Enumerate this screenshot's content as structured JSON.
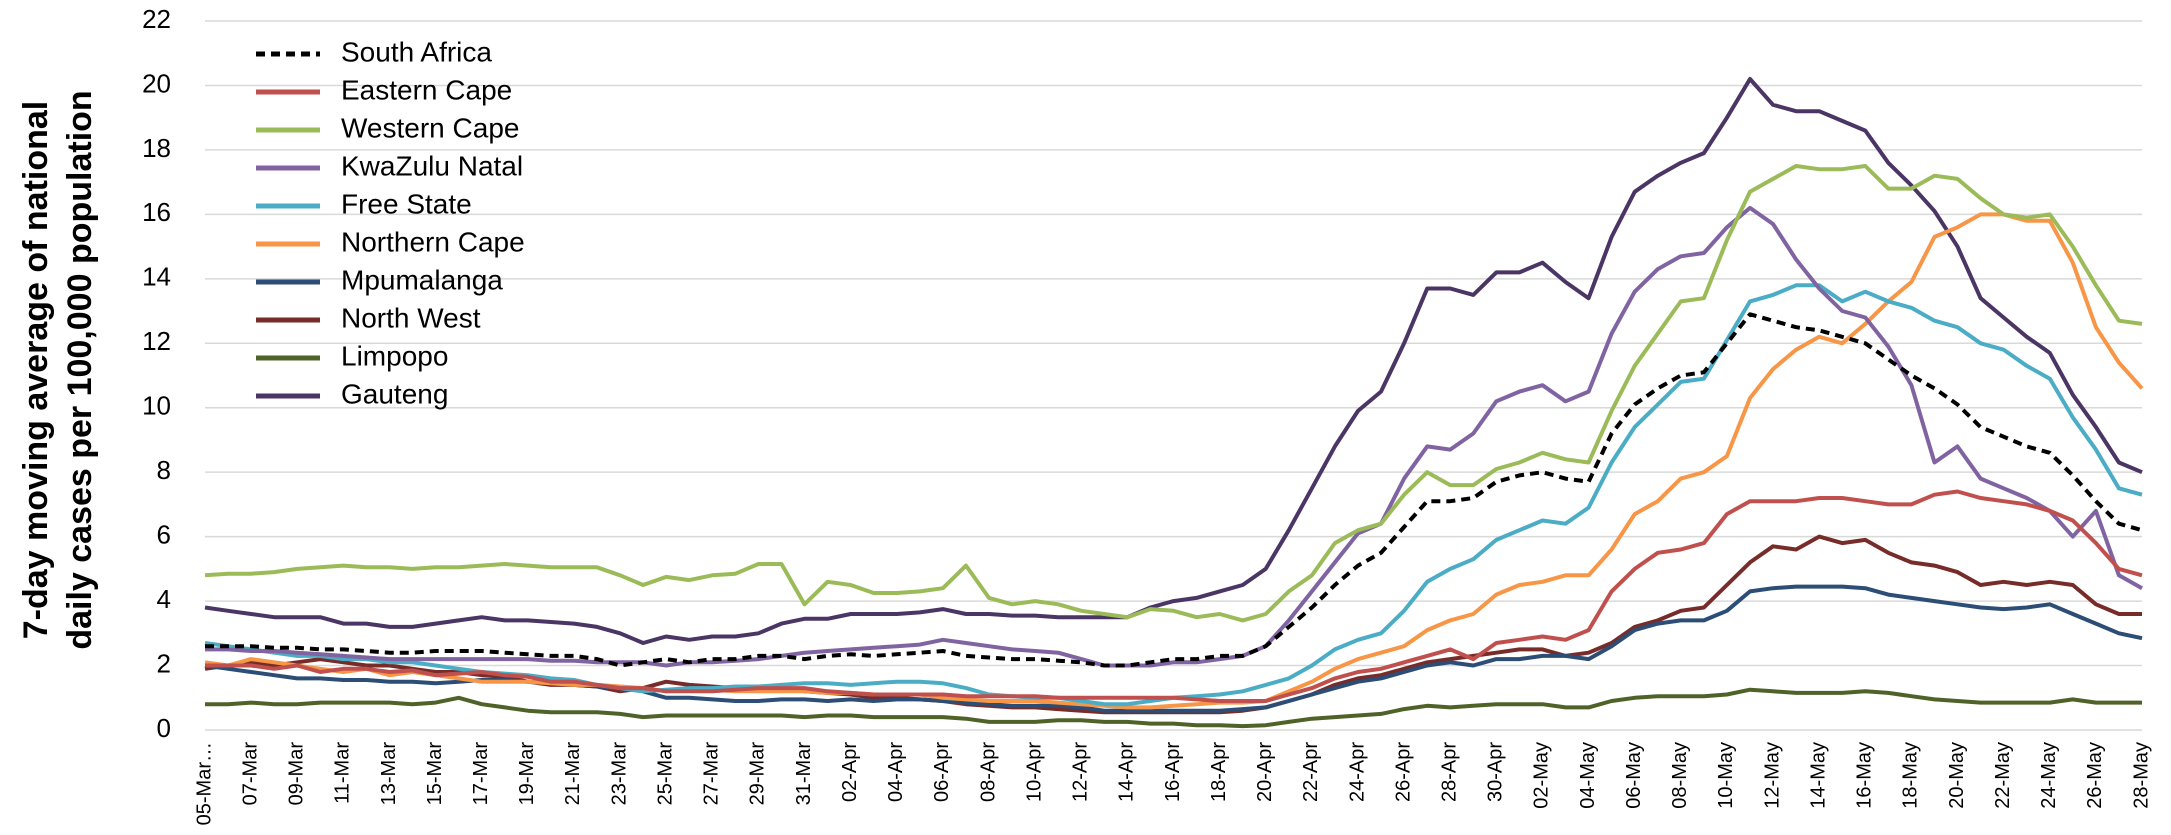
{
  "chart_data": {
    "type": "line",
    "ylabel": [
      "7-day moving  average of national",
      "daily cases per 100,000 population"
    ],
    "categories": [
      "05-Mar…",
      null,
      "07-Mar",
      null,
      "09-Mar",
      null,
      "11-Mar",
      null,
      "13-Mar",
      null,
      "15-Mar",
      null,
      "17-Mar",
      null,
      "19-Mar",
      null,
      "21-Mar",
      null,
      "23-Mar",
      null,
      "25-Mar",
      null,
      "27-Mar",
      null,
      "29-Mar",
      null,
      "31-Mar",
      null,
      "02-Apr",
      null,
      "04-Apr",
      null,
      "06-Apr",
      null,
      "08-Apr",
      null,
      "10-Apr",
      null,
      "12-Apr",
      null,
      "14-Apr",
      null,
      "16-Apr",
      null,
      "18-Apr",
      null,
      "20-Apr",
      null,
      "22-Apr",
      null,
      "24-Apr",
      null,
      "26-Apr",
      null,
      "28-Apr",
      null,
      "30-Apr",
      null,
      "02-May",
      null,
      "04-May",
      null,
      "06-May",
      null,
      "08-May",
      null,
      "10-May",
      null,
      "12-May",
      null,
      "14-May",
      null,
      "16-May",
      null,
      "18-May",
      null,
      "20-May",
      null,
      "22-May",
      null,
      "24-May",
      null,
      "26-May",
      null,
      "28-May"
    ],
    "ylim": [
      0,
      22
    ],
    "yticks": [
      0,
      2,
      4,
      6,
      8,
      10,
      12,
      14,
      16,
      18,
      20,
      22
    ],
    "grid": true,
    "legend": "upper left",
    "series": [
      {
        "name": "South Africa",
        "color": "#000000",
        "style": "dashed",
        "values": [
          2.6,
          2.6,
          2.6,
          2.55,
          2.55,
          2.5,
          2.5,
          2.45,
          2.4,
          2.4,
          2.45,
          2.45,
          2.45,
          2.4,
          2.35,
          2.3,
          2.3,
          2.2,
          2.0,
          2.1,
          2.2,
          2.1,
          2.2,
          2.2,
          2.3,
          2.3,
          2.2,
          2.3,
          2.35,
          2.3,
          2.35,
          2.4,
          2.45,
          2.3,
          2.25,
          2.2,
          2.2,
          2.15,
          2.1,
          2.0,
          2.0,
          2.1,
          2.2,
          2.2,
          2.3,
          2.3,
          2.6,
          3.2,
          3.8,
          4.5,
          5.1,
          5.5,
          6.3,
          7.1,
          7.1,
          7.2,
          7.7,
          7.9,
          8.0,
          7.8,
          7.7,
          9.2,
          10.1,
          10.6,
          11.0,
          11.1,
          12.0,
          12.9,
          12.7,
          12.5,
          12.4,
          12.2,
          12.0,
          11.5,
          11.0,
          10.6,
          10.1,
          9.4,
          9.1,
          8.8,
          8.6,
          7.9,
          7.1,
          6.4,
          6.2
        ]
      },
      {
        "name": "Eastern Cape",
        "color": "#c0504d",
        "values": [
          2.0,
          2.0,
          2.0,
          1.9,
          2.0,
          1.8,
          1.9,
          1.9,
          1.8,
          1.85,
          1.7,
          1.75,
          1.8,
          1.7,
          1.65,
          1.5,
          1.5,
          1.4,
          1.3,
          1.3,
          1.2,
          1.2,
          1.2,
          1.25,
          1.3,
          1.3,
          1.3,
          1.2,
          1.15,
          1.1,
          1.1,
          1.1,
          1.1,
          1.05,
          1.05,
          1.05,
          1.05,
          1.0,
          1.0,
          1.0,
          1.0,
          1.0,
          1.0,
          0.95,
          0.9,
          0.9,
          0.9,
          1.1,
          1.3,
          1.6,
          1.8,
          1.9,
          2.1,
          2.3,
          2.5,
          2.2,
          2.7,
          2.8,
          2.9,
          2.8,
          3.1,
          4.3,
          5.0,
          5.5,
          5.6,
          5.8,
          6.7,
          7.1,
          7.1,
          7.1,
          7.2,
          7.2,
          7.1,
          7.0,
          7.0,
          7.3,
          7.4,
          7.2,
          7.1,
          7.0,
          6.8,
          6.5,
          5.8,
          5.0,
          4.8
        ]
      },
      {
        "name": "Western Cape",
        "color": "#9bbb59",
        "values": [
          4.8,
          4.85,
          4.85,
          4.9,
          5.0,
          5.05,
          5.1,
          5.05,
          5.05,
          5.0,
          5.05,
          5.05,
          5.1,
          5.15,
          5.1,
          5.05,
          5.05,
          5.05,
          4.8,
          4.5,
          4.75,
          4.65,
          4.8,
          4.85,
          5.15,
          5.15,
          3.9,
          4.6,
          4.5,
          4.25,
          4.25,
          4.3,
          4.4,
          5.1,
          4.1,
          3.9,
          4.0,
          3.9,
          3.7,
          3.6,
          3.5,
          3.75,
          3.7,
          3.5,
          3.6,
          3.4,
          3.6,
          4.3,
          4.8,
          5.8,
          6.2,
          6.4,
          7.3,
          8.0,
          7.6,
          7.6,
          8.1,
          8.3,
          8.6,
          8.4,
          8.3,
          9.9,
          11.3,
          12.3,
          13.3,
          13.4,
          15.2,
          16.7,
          17.1,
          17.5,
          17.4,
          17.4,
          17.5,
          16.8,
          16.8,
          17.2,
          17.1,
          16.5,
          16.0,
          15.9,
          16.0,
          15.0,
          13.8,
          12.7,
          12.6
        ]
      },
      {
        "name": "KwaZulu Natal",
        "color": "#8064a2",
        "values": [
          2.5,
          2.5,
          2.45,
          2.45,
          2.4,
          2.35,
          2.3,
          2.25,
          2.2,
          2.2,
          2.2,
          2.2,
          2.2,
          2.2,
          2.2,
          2.15,
          2.15,
          2.1,
          2.1,
          2.1,
          2.0,
          2.1,
          2.1,
          2.15,
          2.2,
          2.3,
          2.4,
          2.45,
          2.5,
          2.55,
          2.6,
          2.65,
          2.8,
          2.7,
          2.6,
          2.5,
          2.45,
          2.4,
          2.2,
          2.0,
          2.0,
          2.0,
          2.1,
          2.1,
          2.2,
          2.3,
          2.6,
          3.4,
          4.3,
          5.2,
          6.1,
          6.4,
          7.8,
          8.8,
          8.7,
          9.2,
          10.2,
          10.5,
          10.7,
          10.2,
          10.5,
          12.3,
          13.6,
          14.3,
          14.7,
          14.8,
          15.6,
          16.2,
          15.7,
          14.6,
          13.7,
          13.0,
          12.8,
          11.9,
          10.7,
          8.3,
          8.8,
          7.8,
          7.5,
          7.2,
          6.8,
          6.0,
          6.8,
          4.8,
          4.4
        ]
      },
      {
        "name": "Free State",
        "color": "#4bacc6",
        "values": [
          2.7,
          2.6,
          2.5,
          2.4,
          2.3,
          2.3,
          2.2,
          2.2,
          2.1,
          2.1,
          2.0,
          1.9,
          1.8,
          1.75,
          1.7,
          1.6,
          1.55,
          1.4,
          1.3,
          1.2,
          1.25,
          1.3,
          1.3,
          1.35,
          1.35,
          1.4,
          1.45,
          1.45,
          1.4,
          1.45,
          1.5,
          1.5,
          1.45,
          1.3,
          1.1,
          1.05,
          1.0,
          1.0,
          0.9,
          0.8,
          0.8,
          0.9,
          1.0,
          1.05,
          1.1,
          1.2,
          1.4,
          1.6,
          2.0,
          2.5,
          2.8,
          3.0,
          3.7,
          4.6,
          5.0,
          5.3,
          5.9,
          6.2,
          6.5,
          6.4,
          6.9,
          8.3,
          9.4,
          10.1,
          10.8,
          10.9,
          12.1,
          13.3,
          13.5,
          13.8,
          13.8,
          13.3,
          13.6,
          13.3,
          13.1,
          12.7,
          12.5,
          12.0,
          11.8,
          11.3,
          10.9,
          9.7,
          8.7,
          7.5,
          7.3
        ]
      },
      {
        "name": "Northern Cape",
        "color": "#f79646",
        "values": [
          2.1,
          2.0,
          2.2,
          2.1,
          2.0,
          1.9,
          1.8,
          1.9,
          1.7,
          1.8,
          1.7,
          1.6,
          1.5,
          1.5,
          1.5,
          1.45,
          1.4,
          1.4,
          1.35,
          1.3,
          1.2,
          1.25,
          1.25,
          1.2,
          1.2,
          1.2,
          1.2,
          1.15,
          1.15,
          1.1,
          1.1,
          1.1,
          1.0,
          0.95,
          0.9,
          0.9,
          0.9,
          0.85,
          0.8,
          0.75,
          0.7,
          0.7,
          0.75,
          0.8,
          0.85,
          0.85,
          0.9,
          1.2,
          1.5,
          1.9,
          2.2,
          2.4,
          2.6,
          3.1,
          3.4,
          3.6,
          4.2,
          4.5,
          4.6,
          4.8,
          4.8,
          5.6,
          6.7,
          7.1,
          7.8,
          8.0,
          8.5,
          10.3,
          11.2,
          11.8,
          12.2,
          12.0,
          12.6,
          13.3,
          13.9,
          15.3,
          15.6,
          16.0,
          16.0,
          15.8,
          15.8,
          14.5,
          12.5,
          11.4,
          10.6
        ]
      },
      {
        "name": "Mpumalanga",
        "color": "#2c4d75",
        "values": [
          2.0,
          1.9,
          1.8,
          1.7,
          1.6,
          1.6,
          1.55,
          1.55,
          1.5,
          1.5,
          1.45,
          1.5,
          1.55,
          1.55,
          1.5,
          1.45,
          1.4,
          1.35,
          1.3,
          1.2,
          1.0,
          1.0,
          0.95,
          0.9,
          0.9,
          0.95,
          0.95,
          0.9,
          0.95,
          0.9,
          0.95,
          0.95,
          0.9,
          0.85,
          0.8,
          0.75,
          0.75,
          0.75,
          0.7,
          0.6,
          0.6,
          0.6,
          0.6,
          0.6,
          0.6,
          0.65,
          0.7,
          0.9,
          1.1,
          1.3,
          1.5,
          1.6,
          1.8,
          2.0,
          2.1,
          2.0,
          2.2,
          2.2,
          2.3,
          2.3,
          2.2,
          2.6,
          3.1,
          3.3,
          3.4,
          3.4,
          3.7,
          4.3,
          4.4,
          4.45,
          4.45,
          4.45,
          4.4,
          4.2,
          4.1,
          4.0,
          3.9,
          3.8,
          3.75,
          3.8,
          3.9,
          3.6,
          3.3,
          3.0,
          2.85
        ]
      },
      {
        "name": "North West",
        "color": "#772c2a",
        "values": [
          1.9,
          2.0,
          2.1,
          2.0,
          2.1,
          2.2,
          2.1,
          2.0,
          2.0,
          1.9,
          1.8,
          1.8,
          1.7,
          1.65,
          1.5,
          1.4,
          1.4,
          1.35,
          1.2,
          1.3,
          1.5,
          1.4,
          1.35,
          1.3,
          1.3,
          1.3,
          1.2,
          1.15,
          1.1,
          1.0,
          1.0,
          0.95,
          0.9,
          0.8,
          0.75,
          0.7,
          0.7,
          0.65,
          0.6,
          0.55,
          0.55,
          0.55,
          0.55,
          0.55,
          0.55,
          0.6,
          0.7,
          0.9,
          1.1,
          1.4,
          1.6,
          1.7,
          1.9,
          2.1,
          2.2,
          2.3,
          2.4,
          2.5,
          2.5,
          2.3,
          2.4,
          2.7,
          3.2,
          3.4,
          3.7,
          3.8,
          4.5,
          5.2,
          5.7,
          5.6,
          6.0,
          5.8,
          5.9,
          5.5,
          5.2,
          5.1,
          4.9,
          4.5,
          4.6,
          4.5,
          4.6,
          4.5,
          3.9,
          3.6,
          3.6
        ]
      },
      {
        "name": "Limpopo",
        "color": "#4f6228",
        "values": [
          0.8,
          0.8,
          0.85,
          0.8,
          0.8,
          0.85,
          0.85,
          0.85,
          0.85,
          0.8,
          0.85,
          1.0,
          0.8,
          0.7,
          0.6,
          0.55,
          0.55,
          0.55,
          0.5,
          0.4,
          0.45,
          0.45,
          0.45,
          0.45,
          0.45,
          0.45,
          0.4,
          0.45,
          0.45,
          0.4,
          0.4,
          0.4,
          0.4,
          0.35,
          0.25,
          0.25,
          0.25,
          0.3,
          0.3,
          0.25,
          0.25,
          0.2,
          0.2,
          0.15,
          0.15,
          0.12,
          0.15,
          0.25,
          0.35,
          0.4,
          0.45,
          0.5,
          0.65,
          0.75,
          0.7,
          0.75,
          0.8,
          0.8,
          0.8,
          0.7,
          0.7,
          0.9,
          1.0,
          1.05,
          1.05,
          1.05,
          1.1,
          1.25,
          1.2,
          1.15,
          1.15,
          1.15,
          1.2,
          1.15,
          1.05,
          0.95,
          0.9,
          0.85,
          0.85,
          0.85,
          0.85,
          0.95,
          0.85,
          0.85,
          0.85
        ]
      },
      {
        "name": "Gauteng",
        "color": "#4b3564",
        "values": [
          3.8,
          3.7,
          3.6,
          3.5,
          3.5,
          3.5,
          3.3,
          3.3,
          3.2,
          3.2,
          3.3,
          3.4,
          3.5,
          3.4,
          3.4,
          3.35,
          3.3,
          3.2,
          3.0,
          2.7,
          2.9,
          2.8,
          2.9,
          2.9,
          3.0,
          3.3,
          3.45,
          3.45,
          3.6,
          3.6,
          3.6,
          3.65,
          3.75,
          3.6,
          3.6,
          3.55,
          3.55,
          3.5,
          3.5,
          3.5,
          3.5,
          3.8,
          4.0,
          4.1,
          4.3,
          4.5,
          5.0,
          6.2,
          7.5,
          8.8,
          9.9,
          10.5,
          12.0,
          13.7,
          13.7,
          13.5,
          14.2,
          14.2,
          14.5,
          13.9,
          13.4,
          15.3,
          16.7,
          17.2,
          17.6,
          17.9,
          19.0,
          20.2,
          19.4,
          19.2,
          19.2,
          18.9,
          18.6,
          17.6,
          16.9,
          16.1,
          15.0,
          13.4,
          12.8,
          12.2,
          11.7,
          10.4,
          9.4,
          8.3,
          8.0
        ]
      }
    ]
  }
}
